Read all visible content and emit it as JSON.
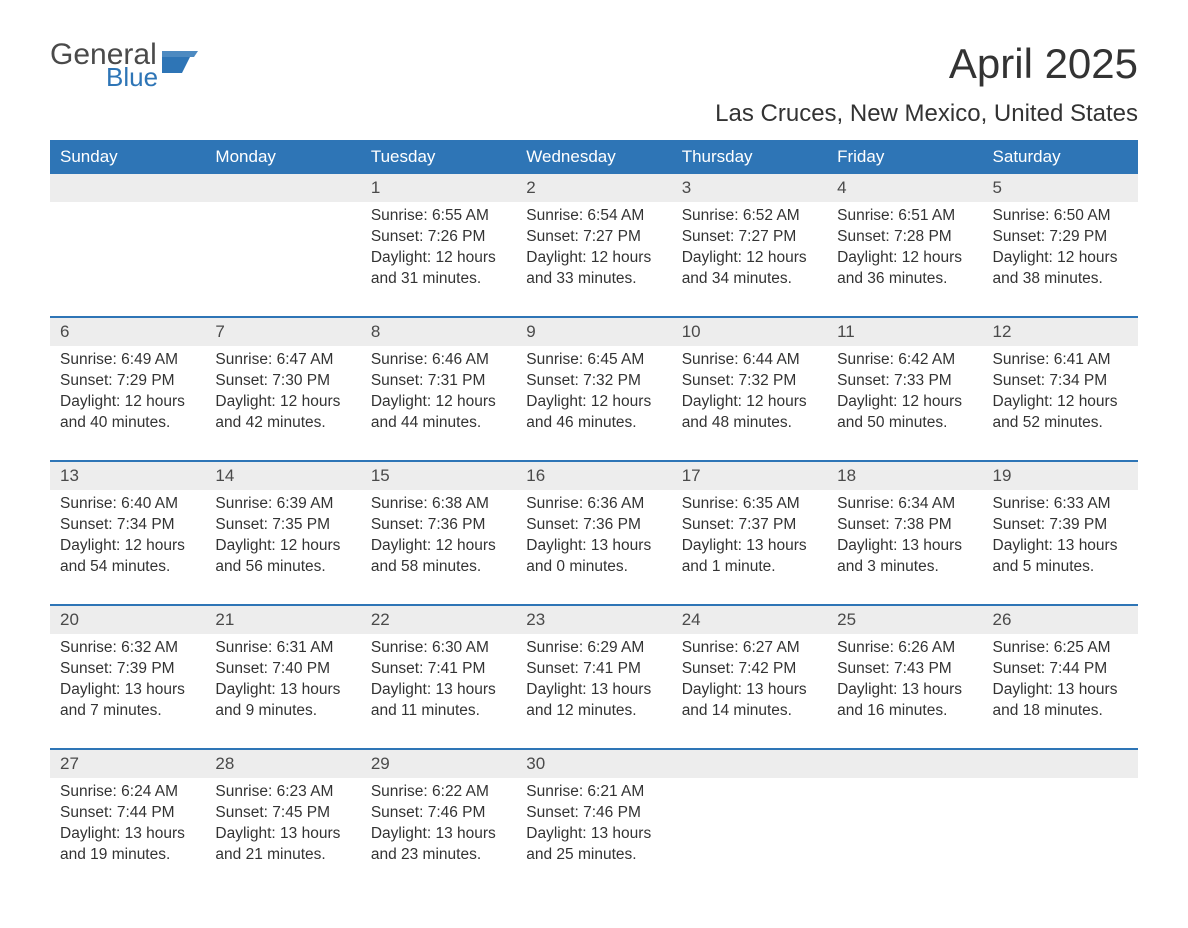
{
  "brand": {
    "word1": "General",
    "word2": "Blue",
    "flag_color": "#2e75b6"
  },
  "title": "April 2025",
  "location": "Las Cruces, New Mexico, United States",
  "colors": {
    "header_bg": "#2e75b6",
    "header_text": "#ffffff",
    "daynum_bg": "#ededed",
    "text": "#333333",
    "page_bg": "#ffffff",
    "week_border": "#2e75b6"
  },
  "typography": {
    "month_title_fontsize": 42,
    "location_fontsize": 24,
    "dayhead_fontsize": 17,
    "daynum_fontsize": 17,
    "body_fontsize": 15.5
  },
  "day_headers": [
    "Sunday",
    "Monday",
    "Tuesday",
    "Wednesday",
    "Thursday",
    "Friday",
    "Saturday"
  ],
  "weeks": [
    [
      {
        "num": "",
        "sunrise": "",
        "sunset": "",
        "daylight1": "",
        "daylight2": ""
      },
      {
        "num": "",
        "sunrise": "",
        "sunset": "",
        "daylight1": "",
        "daylight2": ""
      },
      {
        "num": "1",
        "sunrise": "Sunrise: 6:55 AM",
        "sunset": "Sunset: 7:26 PM",
        "daylight1": "Daylight: 12 hours",
        "daylight2": "and 31 minutes."
      },
      {
        "num": "2",
        "sunrise": "Sunrise: 6:54 AM",
        "sunset": "Sunset: 7:27 PM",
        "daylight1": "Daylight: 12 hours",
        "daylight2": "and 33 minutes."
      },
      {
        "num": "3",
        "sunrise": "Sunrise: 6:52 AM",
        "sunset": "Sunset: 7:27 PM",
        "daylight1": "Daylight: 12 hours",
        "daylight2": "and 34 minutes."
      },
      {
        "num": "4",
        "sunrise": "Sunrise: 6:51 AM",
        "sunset": "Sunset: 7:28 PM",
        "daylight1": "Daylight: 12 hours",
        "daylight2": "and 36 minutes."
      },
      {
        "num": "5",
        "sunrise": "Sunrise: 6:50 AM",
        "sunset": "Sunset: 7:29 PM",
        "daylight1": "Daylight: 12 hours",
        "daylight2": "and 38 minutes."
      }
    ],
    [
      {
        "num": "6",
        "sunrise": "Sunrise: 6:49 AM",
        "sunset": "Sunset: 7:29 PM",
        "daylight1": "Daylight: 12 hours",
        "daylight2": "and 40 minutes."
      },
      {
        "num": "7",
        "sunrise": "Sunrise: 6:47 AM",
        "sunset": "Sunset: 7:30 PM",
        "daylight1": "Daylight: 12 hours",
        "daylight2": "and 42 minutes."
      },
      {
        "num": "8",
        "sunrise": "Sunrise: 6:46 AM",
        "sunset": "Sunset: 7:31 PM",
        "daylight1": "Daylight: 12 hours",
        "daylight2": "and 44 minutes."
      },
      {
        "num": "9",
        "sunrise": "Sunrise: 6:45 AM",
        "sunset": "Sunset: 7:32 PM",
        "daylight1": "Daylight: 12 hours",
        "daylight2": "and 46 minutes."
      },
      {
        "num": "10",
        "sunrise": "Sunrise: 6:44 AM",
        "sunset": "Sunset: 7:32 PM",
        "daylight1": "Daylight: 12 hours",
        "daylight2": "and 48 minutes."
      },
      {
        "num": "11",
        "sunrise": "Sunrise: 6:42 AM",
        "sunset": "Sunset: 7:33 PM",
        "daylight1": "Daylight: 12 hours",
        "daylight2": "and 50 minutes."
      },
      {
        "num": "12",
        "sunrise": "Sunrise: 6:41 AM",
        "sunset": "Sunset: 7:34 PM",
        "daylight1": "Daylight: 12 hours",
        "daylight2": "and 52 minutes."
      }
    ],
    [
      {
        "num": "13",
        "sunrise": "Sunrise: 6:40 AM",
        "sunset": "Sunset: 7:34 PM",
        "daylight1": "Daylight: 12 hours",
        "daylight2": "and 54 minutes."
      },
      {
        "num": "14",
        "sunrise": "Sunrise: 6:39 AM",
        "sunset": "Sunset: 7:35 PM",
        "daylight1": "Daylight: 12 hours",
        "daylight2": "and 56 minutes."
      },
      {
        "num": "15",
        "sunrise": "Sunrise: 6:38 AM",
        "sunset": "Sunset: 7:36 PM",
        "daylight1": "Daylight: 12 hours",
        "daylight2": "and 58 minutes."
      },
      {
        "num": "16",
        "sunrise": "Sunrise: 6:36 AM",
        "sunset": "Sunset: 7:36 PM",
        "daylight1": "Daylight: 13 hours",
        "daylight2": "and 0 minutes."
      },
      {
        "num": "17",
        "sunrise": "Sunrise: 6:35 AM",
        "sunset": "Sunset: 7:37 PM",
        "daylight1": "Daylight: 13 hours",
        "daylight2": "and 1 minute."
      },
      {
        "num": "18",
        "sunrise": "Sunrise: 6:34 AM",
        "sunset": "Sunset: 7:38 PM",
        "daylight1": "Daylight: 13 hours",
        "daylight2": "and 3 minutes."
      },
      {
        "num": "19",
        "sunrise": "Sunrise: 6:33 AM",
        "sunset": "Sunset: 7:39 PM",
        "daylight1": "Daylight: 13 hours",
        "daylight2": "and 5 minutes."
      }
    ],
    [
      {
        "num": "20",
        "sunrise": "Sunrise: 6:32 AM",
        "sunset": "Sunset: 7:39 PM",
        "daylight1": "Daylight: 13 hours",
        "daylight2": "and 7 minutes."
      },
      {
        "num": "21",
        "sunrise": "Sunrise: 6:31 AM",
        "sunset": "Sunset: 7:40 PM",
        "daylight1": "Daylight: 13 hours",
        "daylight2": "and 9 minutes."
      },
      {
        "num": "22",
        "sunrise": "Sunrise: 6:30 AM",
        "sunset": "Sunset: 7:41 PM",
        "daylight1": "Daylight: 13 hours",
        "daylight2": "and 11 minutes."
      },
      {
        "num": "23",
        "sunrise": "Sunrise: 6:29 AM",
        "sunset": "Sunset: 7:41 PM",
        "daylight1": "Daylight: 13 hours",
        "daylight2": "and 12 minutes."
      },
      {
        "num": "24",
        "sunrise": "Sunrise: 6:27 AM",
        "sunset": "Sunset: 7:42 PM",
        "daylight1": "Daylight: 13 hours",
        "daylight2": "and 14 minutes."
      },
      {
        "num": "25",
        "sunrise": "Sunrise: 6:26 AM",
        "sunset": "Sunset: 7:43 PM",
        "daylight1": "Daylight: 13 hours",
        "daylight2": "and 16 minutes."
      },
      {
        "num": "26",
        "sunrise": "Sunrise: 6:25 AM",
        "sunset": "Sunset: 7:44 PM",
        "daylight1": "Daylight: 13 hours",
        "daylight2": "and 18 minutes."
      }
    ],
    [
      {
        "num": "27",
        "sunrise": "Sunrise: 6:24 AM",
        "sunset": "Sunset: 7:44 PM",
        "daylight1": "Daylight: 13 hours",
        "daylight2": "and 19 minutes."
      },
      {
        "num": "28",
        "sunrise": "Sunrise: 6:23 AM",
        "sunset": "Sunset: 7:45 PM",
        "daylight1": "Daylight: 13 hours",
        "daylight2": "and 21 minutes."
      },
      {
        "num": "29",
        "sunrise": "Sunrise: 6:22 AM",
        "sunset": "Sunset: 7:46 PM",
        "daylight1": "Daylight: 13 hours",
        "daylight2": "and 23 minutes."
      },
      {
        "num": "30",
        "sunrise": "Sunrise: 6:21 AM",
        "sunset": "Sunset: 7:46 PM",
        "daylight1": "Daylight: 13 hours",
        "daylight2": "and 25 minutes."
      },
      {
        "num": "",
        "sunrise": "",
        "sunset": "",
        "daylight1": "",
        "daylight2": ""
      },
      {
        "num": "",
        "sunrise": "",
        "sunset": "",
        "daylight1": "",
        "daylight2": ""
      },
      {
        "num": "",
        "sunrise": "",
        "sunset": "",
        "daylight1": "",
        "daylight2": ""
      }
    ]
  ]
}
